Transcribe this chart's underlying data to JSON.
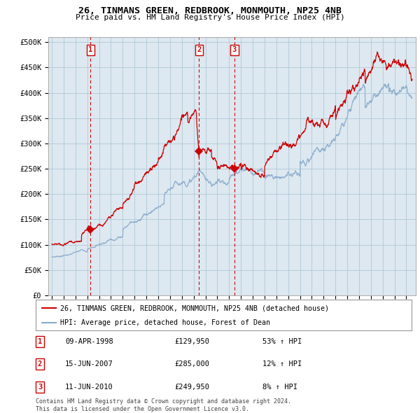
{
  "title": "26, TINMANS GREEN, REDBROOK, MONMOUTH, NP25 4NB",
  "subtitle": "Price paid vs. HM Land Registry's House Price Index (HPI)",
  "ylabel_ticks": [
    "£0",
    "£50K",
    "£100K",
    "£150K",
    "£200K",
    "£250K",
    "£300K",
    "£350K",
    "£400K",
    "£450K",
    "£500K"
  ],
  "ytick_values": [
    0,
    50000,
    100000,
    150000,
    200000,
    250000,
    300000,
    350000,
    400000,
    450000,
    500000
  ],
  "ylim": [
    0,
    510000
  ],
  "transactions": [
    {
      "num": 1,
      "date": "09-APR-1998",
      "price": 129950,
      "year": 1998.27,
      "pct": "53%",
      "dir": "↑"
    },
    {
      "num": 2,
      "date": "15-JUN-2007",
      "price": 285000,
      "year": 2007.46,
      "pct": "12%",
      "dir": "↑"
    },
    {
      "num": 3,
      "date": "11-JUN-2010",
      "price": 249950,
      "year": 2010.45,
      "pct": "8%",
      "dir": "↑"
    }
  ],
  "legend_line1": "26, TINMANS GREEN, REDBROOK, MONMOUTH, NP25 4NB (detached house)",
  "legend_line2": "HPI: Average price, detached house, Forest of Dean",
  "footnote1": "Contains HM Land Registry data © Crown copyright and database right 2024.",
  "footnote2": "This data is licensed under the Open Government Licence v3.0.",
  "line_color": "#cc0000",
  "hpi_color": "#88aacc",
  "chart_bg": "#dde8f0",
  "background_color": "#ffffff",
  "grid_color": "#b0c8d8"
}
